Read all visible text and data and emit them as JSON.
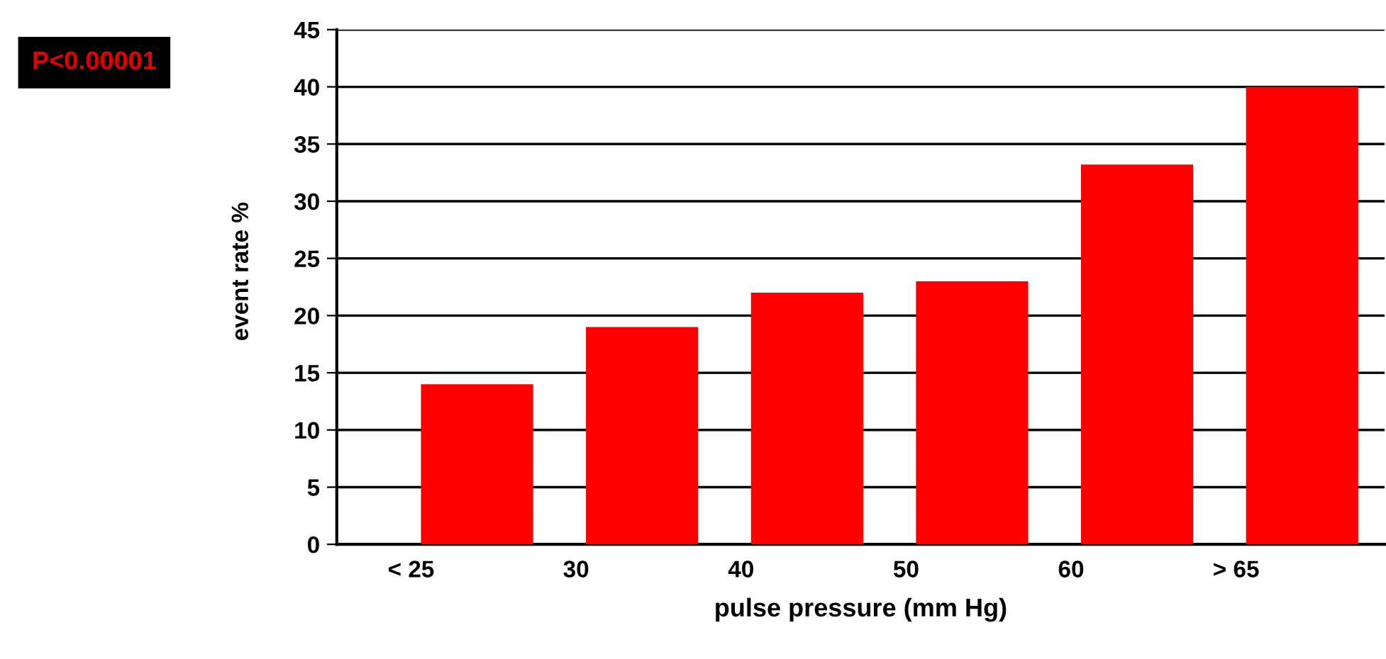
{
  "chart_data": {
    "type": "bar",
    "xlabel": "pulse pressure (mm Hg)",
    "ylabel": "event rate %",
    "categories": [
      "< 25",
      "30",
      "40",
      "50",
      "60",
      "> 65"
    ],
    "values": [
      14,
      19,
      22,
      23,
      33.2,
      40
    ],
    "color": "#ff0000",
    "ylim": [
      0,
      45
    ],
    "yticks": [
      0,
      5,
      10,
      15,
      20,
      25,
      30,
      35,
      40,
      45
    ],
    "grid": "y",
    "annotations": [
      "P<0.00001"
    ]
  }
}
